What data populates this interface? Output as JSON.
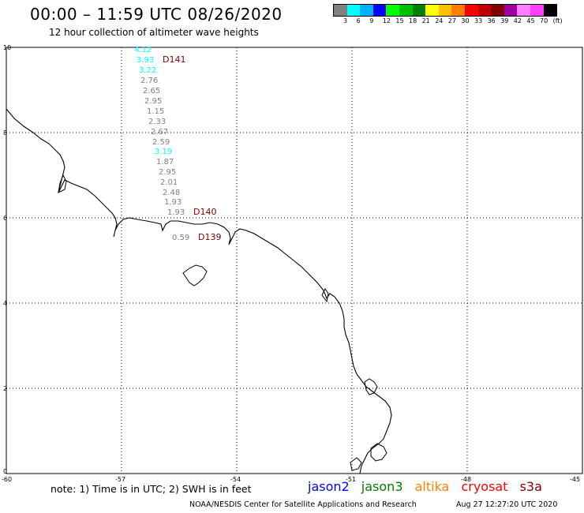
{
  "title": "00:00 – 11:59 UTC 08/26/2020",
  "subtitle": "12 hour collection of altimeter wave heights",
  "colorbar": {
    "colors": [
      "#808080",
      "#00ffff",
      "#00b0ff",
      "#0000ff",
      "#00ff00",
      "#00c000",
      "#008000",
      "#ffff00",
      "#ffc000",
      "#ff8000",
      "#ff0000",
      "#c00000",
      "#800000",
      "#a000a0",
      "#ff80ff",
      "#ff40ff",
      "#000000"
    ],
    "labels": [
      "3",
      "6",
      "9",
      "12",
      "15",
      "18",
      "21",
      "24",
      "27",
      "30",
      "33",
      "36",
      "39",
      "42",
      "45",
      "70",
      "(ft)"
    ]
  },
  "axes": {
    "lat_labels": [
      "10",
      "8",
      "6",
      "4",
      "2",
      "0"
    ],
    "lon_labels": [
      "-60",
      "-57",
      "-54",
      "-51",
      "-48",
      "-45"
    ]
  },
  "observations": [
    {
      "value": "4.12",
      "color": "#00ffff"
    },
    {
      "value": "3.93",
      "color": "#00ffff"
    },
    {
      "value": "3.22",
      "color": "#00ffff"
    },
    {
      "value": "2.76",
      "color": "#808080"
    },
    {
      "value": "2.65",
      "color": "#808080"
    },
    {
      "value": "2.95",
      "color": "#808080"
    },
    {
      "value": "1.15",
      "color": "#808080"
    },
    {
      "value": "2.33",
      "color": "#808080"
    },
    {
      "value": "2.67",
      "color": "#808080"
    },
    {
      "value": "2.59",
      "color": "#808080"
    },
    {
      "value": "3.19",
      "color": "#00ffff"
    },
    {
      "value": "1.87",
      "color": "#808080"
    },
    {
      "value": "2.95",
      "color": "#808080"
    },
    {
      "value": "2.01",
      "color": "#808080"
    },
    {
      "value": "2.48",
      "color": "#808080"
    },
    {
      "value": "1.93",
      "color": "#808080"
    },
    {
      "value": "1.93",
      "color": "#808080"
    },
    {
      "value": "0.59",
      "color": "#808080"
    }
  ],
  "passes": [
    "D141",
    "D140",
    "D139"
  ],
  "note": "note: 1) Time is in UTC; 2) SWH is in feet",
  "satellites": [
    {
      "name": "jason2",
      "color": "#0000ff"
    },
    {
      "name": "jason3",
      "color": "#008000"
    },
    {
      "name": "altika",
      "color": "#ff8000"
    },
    {
      "name": "cryosat",
      "color": "#ff0000"
    },
    {
      "name": "s3a",
      "color": "#800000"
    }
  ],
  "credit": "NOAA/NESDIS Center for Satellite Applications and Research",
  "timestamp": "Aug 27 12:27:20 UTC 2020"
}
